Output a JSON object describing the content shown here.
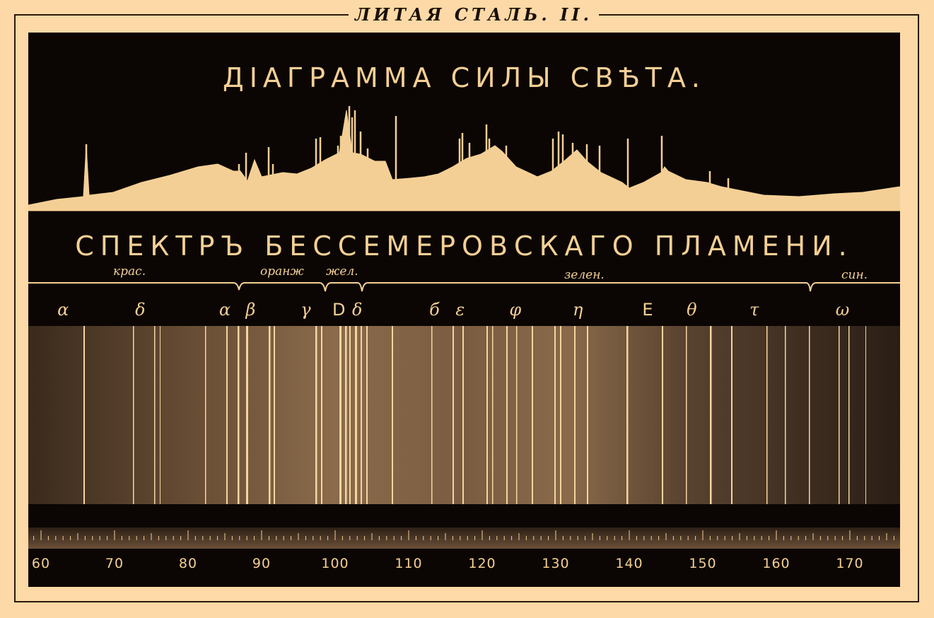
{
  "plate_title": "ЛИТАЯ СТАЛЬ. II.",
  "intensity_title": "ДIАГРАММА СИЛЫ СВѢТА.",
  "spectrum_title": "СПЕКТРЪ БЕССЕМЕРОВСКАГО ПЛАМЕНИ.",
  "regions": [
    {
      "label": "крас."
    },
    {
      "label": "оранж"
    },
    {
      "label": "жел."
    },
    {
      "label": "зелен."
    },
    {
      "label": "син."
    }
  ],
  "line_labels": [
    {
      "label": "α",
      "scale": 63
    },
    {
      "label": "δ",
      "scale": 73.5
    },
    {
      "label": "α",
      "scale": 85
    },
    {
      "label": "β",
      "scale": 88.5
    },
    {
      "label": "γ",
      "scale": 96
    },
    {
      "label": "D",
      "scale": 100.5
    },
    {
      "label": "δ",
      "scale": 103
    },
    {
      "label": "б",
      "scale": 113.5
    },
    {
      "label": "ε",
      "scale": 117
    },
    {
      "label": "φ",
      "scale": 124.5
    },
    {
      "label": "η",
      "scale": 133
    },
    {
      "label": "E",
      "scale": 142.5
    },
    {
      "label": "θ",
      "scale": 148.5
    },
    {
      "label": "τ",
      "scale": 157
    },
    {
      "label": "ω",
      "scale": 169
    }
  ],
  "scale": {
    "ticks": [
      "60",
      "70",
      "80",
      "90",
      "100",
      "110",
      "120",
      "130",
      "140",
      "150",
      "160",
      "170"
    ]
  },
  "colors": {
    "paper": "#fcd9a6",
    "ink": "#0b0604",
    "light": "#f4cf95"
  }
}
